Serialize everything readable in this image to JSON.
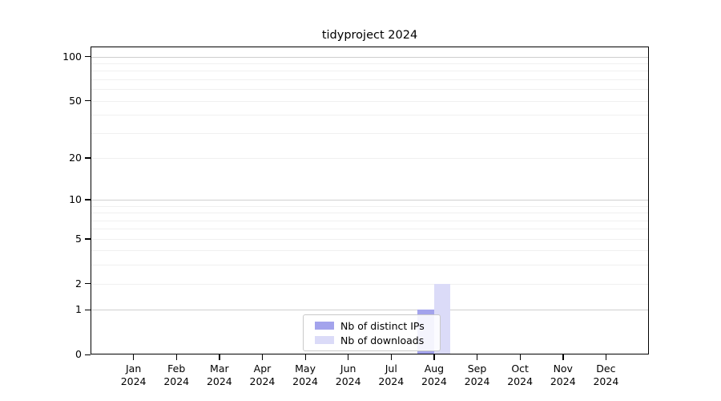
{
  "chart_data": {
    "type": "bar",
    "title": "tidyproject 2024",
    "categories": [
      "Jan",
      "Feb",
      "Mar",
      "Apr",
      "May",
      "Jun",
      "Jul",
      "Aug",
      "Sep",
      "Oct",
      "Nov",
      "Dec"
    ],
    "category_year": "2024",
    "x_tick_labels": [
      "Jan 2024",
      "Feb 2024",
      "Mar 2024",
      "Apr 2024",
      "May 2024",
      "Jun 2024",
      "Jul 2024",
      "Aug 2024",
      "Sep 2024",
      "Oct 2024",
      "Nov 2024",
      "Dec 2024"
    ],
    "series": [
      {
        "name": "Nb of distinct IPs",
        "color": "#a3a3ec",
        "values": [
          0,
          0,
          0,
          0,
          0,
          0,
          0,
          1,
          0,
          0,
          0,
          0
        ]
      },
      {
        "name": "Nb of downloads",
        "color": "#dbdbf8",
        "values": [
          0,
          0,
          0,
          0,
          0,
          0,
          0,
          2,
          0,
          0,
          0,
          0
        ]
      }
    ],
    "xlabel": "",
    "ylabel": "",
    "y_scale": "log1p",
    "ylim": [
      0,
      116
    ],
    "y_ticks": [
      0,
      1,
      2,
      5,
      10,
      20,
      50,
      100
    ],
    "y_major_gridlines": [
      1,
      10,
      100
    ],
    "y_minor_gridlines": [
      2,
      3,
      4,
      5,
      6,
      7,
      8,
      9,
      20,
      30,
      40,
      50,
      60,
      70,
      80,
      90
    ],
    "grid": true,
    "legend_position": "lower center"
  },
  "colors": {
    "major_grid": "#cfcfcf",
    "minor_grid": "#f0f0f0",
    "axis": "#000000",
    "background": "#ffffff"
  }
}
